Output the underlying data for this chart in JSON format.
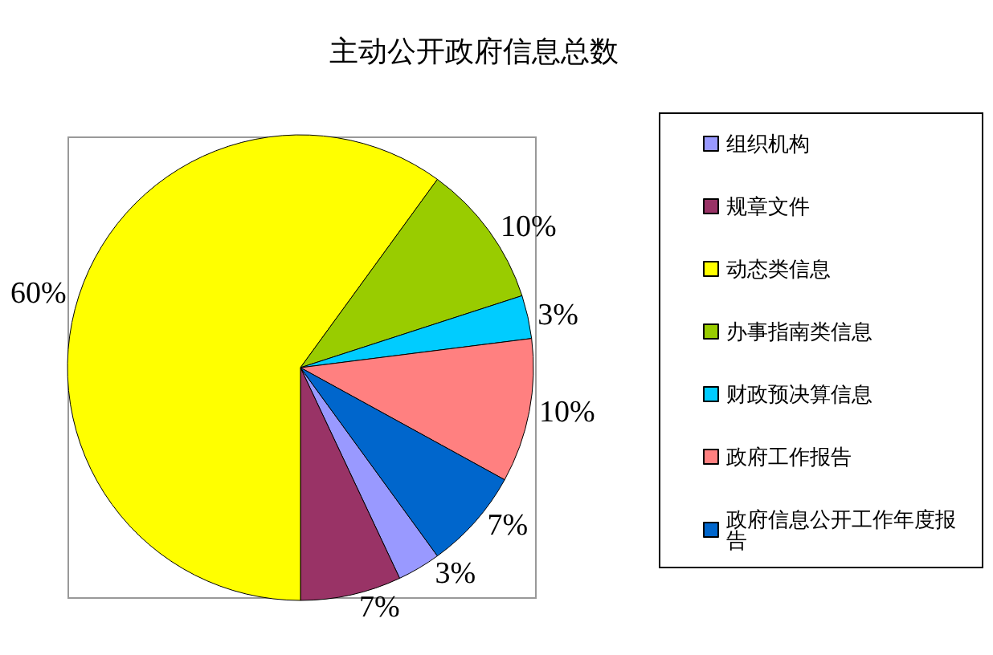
{
  "chart_data": {
    "type": "pie",
    "title": "主动公开政府信息总数",
    "categories": [
      "组织机构",
      "规章文件",
      "动态类信息",
      "办事指南类信息",
      "财政预决算信息",
      "政府工作报告",
      "政府信息公开工作年度报告"
    ],
    "values": [
      3,
      7,
      60,
      10,
      3,
      10,
      7
    ],
    "value_labels": [
      "3%",
      "7%",
      "60%",
      "10%",
      "3%",
      "10%",
      "7%"
    ],
    "colors": [
      "#9999ff",
      "#993366",
      "#ffff00",
      "#99cc00",
      "#00ccff",
      "#ff8080",
      "#0066cc"
    ],
    "legend": "right"
  }
}
